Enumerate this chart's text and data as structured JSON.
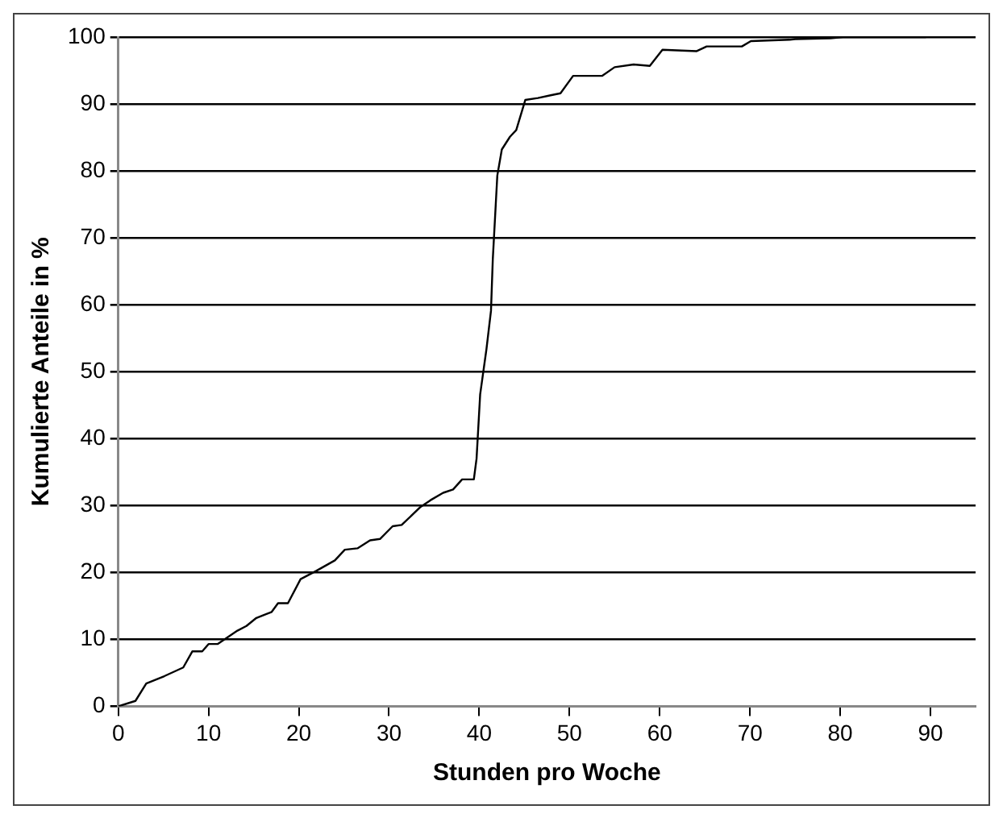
{
  "chart_data": {
    "type": "line",
    "xlabel": "Stunden pro Woche",
    "ylabel": "Kumulierte Anteile in %",
    "x": [
      0,
      1.9,
      3.1,
      5.1,
      7.2,
      8.2,
      9.3,
      10,
      11,
      13.2,
      14.2,
      15.3,
      17,
      17.7,
      18.8,
      20.2,
      21.9,
      24,
      25.1,
      26.5,
      27.9,
      29,
      30.4,
      31.4,
      33.5,
      34.6,
      36,
      37.1,
      38.1,
      39.4,
      39.7,
      40.1,
      40.8,
      41.3,
      41.5,
      42,
      42.5,
      43.4,
      44.1,
      45.1,
      46.5,
      47.9,
      49,
      50.4,
      53.6,
      55,
      57.1,
      58.9,
      60.3,
      64.1,
      65.2,
      69.1,
      70.1,
      74.4,
      75,
      78.9,
      80.3,
      89.5
    ],
    "series": [
      {
        "color": "#000000",
        "values": [
          0,
          0.8,
          3.4,
          4.5,
          5.8,
          8.2,
          8.2,
          9.3,
          9.3,
          11.3,
          12,
          13.2,
          14.1,
          15.4,
          15.4,
          19,
          20.2,
          21.8,
          23.4,
          23.6,
          24.8,
          25,
          26.9,
          27.1,
          29.8,
          30.8,
          31.9,
          32.4,
          33.9,
          33.9,
          37,
          46.6,
          53.4,
          59.1,
          66.8,
          79.3,
          83.2,
          85.1,
          86.1,
          90.6,
          90.9,
          91.3,
          91.6,
          94.2,
          94.2,
          95.5,
          95.9,
          95.7,
          98.1,
          97.9,
          98.6,
          98.6,
          99.4,
          99.6,
          99.7,
          99.8,
          100,
          100
        ]
      }
    ],
    "xlim": [
      0,
      95
    ],
    "xticks": [
      0,
      10,
      20,
      30,
      40,
      50,
      60,
      70,
      80,
      90
    ],
    "ylim": [
      0,
      100
    ],
    "yticks": [
      0,
      10,
      20,
      30,
      40,
      50,
      60,
      70,
      80,
      90,
      100
    ],
    "grid": "y",
    "marker": "none",
    "line_style": "solid"
  }
}
